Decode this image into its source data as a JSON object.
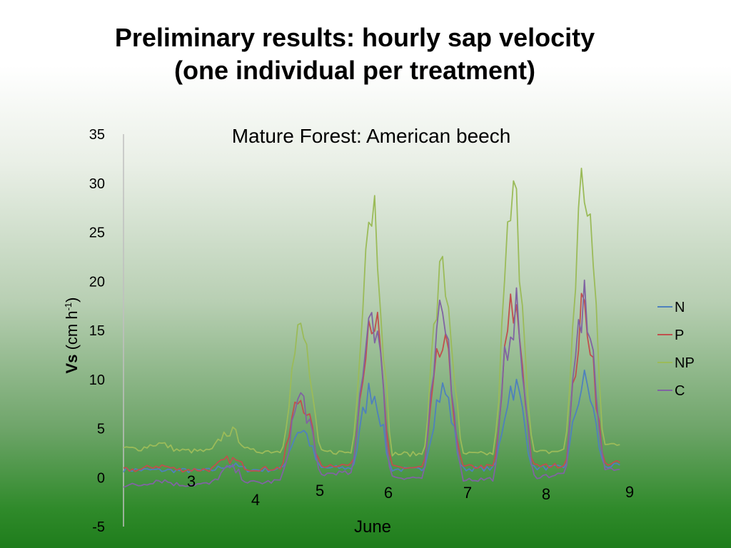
{
  "slide": {
    "title_line1": "Preliminary results: hourly sap velocity",
    "title_line2": "(one individual per treatment)"
  },
  "chart_data": {
    "type": "line",
    "title": "Mature Forest: American beech",
    "ylabel_bold": "Vs",
    "ylabel_rest": " (cm h",
    "ylabel_sup": "-1",
    "ylabel_close": ")",
    "xlabel": "June",
    "ylim": [
      -5,
      35
    ],
    "yticks": [
      35,
      30,
      25,
      20,
      15,
      10,
      5,
      0,
      -5
    ],
    "xlim": [
      2.5,
      10.0
    ],
    "day_labels": [
      "3",
      "4",
      "5",
      "6",
      "7",
      "8",
      "9"
    ],
    "legend_position": "right",
    "grid": false,
    "series": [
      {
        "name": "N",
        "color": "#4f81bd",
        "baseline": [
          0.8,
          0.7,
          0.8,
          1.0,
          0.8,
          0.9,
          1.0,
          1.2
        ],
        "peaks": [
          0,
          0.5,
          4.0,
          8.0,
          8.0,
          8.5,
          8.5
        ]
      },
      {
        "name": "P",
        "color": "#c0504d",
        "baseline": [
          0.8,
          0.8,
          0.9,
          1.3,
          1.0,
          1.1,
          1.2,
          1.5
        ],
        "peaks": [
          0.4,
          1.0,
          7.0,
          16.0,
          12.0,
          16.0,
          15.5
        ]
      },
      {
        "name": "NP",
        "color": "#9bbb59",
        "baseline": [
          3.0,
          2.7,
          2.7,
          2.6,
          2.4,
          2.4,
          2.6,
          3.5
        ],
        "peaks": [
          0.6,
          2.0,
          12.0,
          26.0,
          18.0,
          25.0,
          27.0
        ]
      },
      {
        "name": "C",
        "color": "#8064a2",
        "baseline": [
          -0.8,
          -0.7,
          -0.5,
          0.5,
          0.0,
          -0.2,
          0.2,
          1.0
        ],
        "peaks": [
          0.5,
          1.5,
          8.0,
          17.0,
          16.0,
          17.0,
          17.0
        ]
      }
    ]
  }
}
